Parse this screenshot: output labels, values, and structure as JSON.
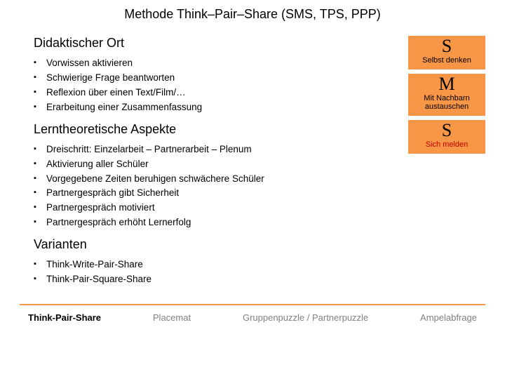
{
  "title": "Methode Think–Pair–Share  (SMS, TPS, PPP)",
  "sections": {
    "s1": {
      "heading": "Didaktischer Ort",
      "items": [
        "Vorwissen aktivieren",
        "Schwierige Frage beantworten",
        "Reflexion über einen Text/Film/…",
        "Erarbeitung einer Zusammenfassung"
      ]
    },
    "s2": {
      "heading": "Lerntheoretische Aspekte",
      "items": [
        "Dreischritt: Einzelarbeit – Partnerarbeit – Plenum",
        "Aktivierung aller Schüler",
        "Vorgegebene Zeiten beruhigen schwächere Schüler",
        "Partnergespräch gibt Sicherheit",
        "Partnergespräch motiviert",
        "Partnergespräch erhöht Lernerfolg"
      ]
    },
    "s3": {
      "heading": "Varianten",
      "items": [
        "Think-Write-Pair-Share",
        "Think-Pair-Square-Share"
      ]
    }
  },
  "boxes": {
    "b1": {
      "big": "S",
      "small": "Selbst denken",
      "red": false
    },
    "b2": {
      "big": "M",
      "small": "Mit Nachbarn austauschen",
      "red": false
    },
    "b3": {
      "big": "S",
      "small": "Sich melden",
      "red": true
    }
  },
  "footer": {
    "f1": "Think-Pair-Share",
    "f2": "Placemat",
    "f3": "Gruppenpuzzle / Partnerpuzzle",
    "f4": "Ampelabfrage"
  },
  "colors": {
    "accent": "#f79646",
    "red": "#c00000",
    "gray": "#808080"
  }
}
